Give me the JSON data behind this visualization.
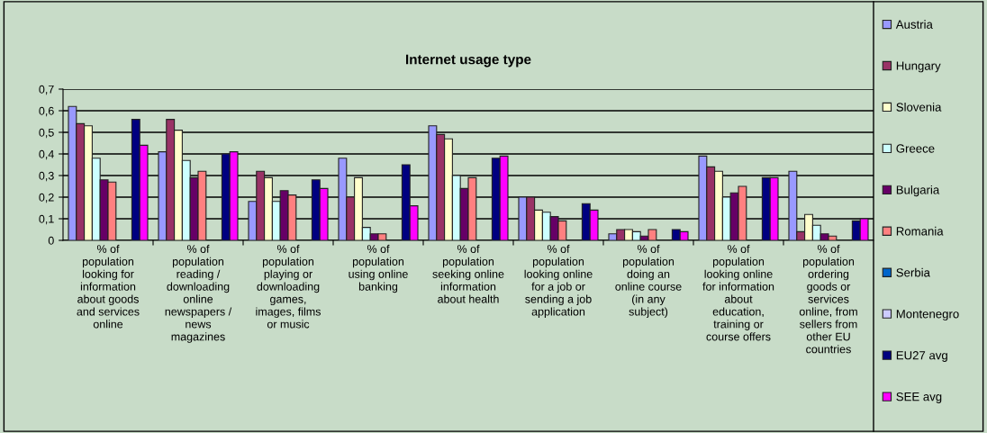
{
  "chart_data": {
    "type": "bar",
    "title": "Internet usage type",
    "categories": [
      "% of\npopulation\nlooking for\ninformation\nabout goods\nand services\nonline",
      "% of\npopulation\nreading /\ndownloading\nonline\nnewspapers /\nnews\nmagazines",
      "% of\npopulation\nplaying or\ndownloading\ngames,\nimages, films\nor music",
      "% of\npopulation\nusing online\nbanking",
      "% of\npopulation\nseeking online\ninformation\nabout health",
      "% of\npopulation\nlooking online\nfor a job or\nsending a job\napplication",
      "% of\npopulation\ndoing an\nonline course\n(in any\nsubject)",
      "% of\npopulation\nlooking online\nfor information\nabout\neducation,\ntraining or\ncourse offers",
      "% of\npopulation\nordering\ngoods or\nservices\nonline, from\nsellers from\nother EU\ncountries"
    ],
    "series": [
      {
        "name": "Austria",
        "color": "#9999ff",
        "values": [
          0.62,
          0.41,
          0.18,
          0.38,
          0.53,
          0.2,
          0.03,
          0.39,
          0.32
        ]
      },
      {
        "name": "Hungary",
        "color": "#993366",
        "values": [
          0.54,
          0.56,
          0.32,
          0.2,
          0.49,
          0.2,
          0.05,
          0.34,
          0.04
        ]
      },
      {
        "name": "Slovenia",
        "color": "#ffffcc",
        "values": [
          0.53,
          0.51,
          0.29,
          0.29,
          0.47,
          0.14,
          0.05,
          0.32,
          0.12
        ]
      },
      {
        "name": "Greece",
        "color": "#ccffff",
        "values": [
          0.38,
          0.37,
          0.18,
          0.06,
          0.3,
          0.13,
          0.04,
          0.2,
          0.07
        ]
      },
      {
        "name": "Bulgaria",
        "color": "#660066",
        "values": [
          0.28,
          0.29,
          0.23,
          0.03,
          0.24,
          0.11,
          0.02,
          0.22,
          0.03
        ]
      },
      {
        "name": "Romania",
        "color": "#ff8080",
        "values": [
          0.27,
          0.32,
          0.21,
          0.03,
          0.29,
          0.09,
          0.05,
          0.25,
          0.02
        ]
      },
      {
        "name": "Serbia",
        "color": "#0066cc",
        "values": [
          null,
          null,
          null,
          null,
          null,
          null,
          null,
          null,
          null
        ]
      },
      {
        "name": "Montenegro",
        "color": "#ccccff",
        "values": [
          null,
          null,
          null,
          null,
          null,
          null,
          null,
          null,
          null
        ]
      },
      {
        "name": "EU27 avg",
        "color": "#000080",
        "values": [
          0.56,
          0.4,
          0.28,
          0.35,
          0.38,
          0.17,
          0.05,
          0.29,
          0.09
        ]
      },
      {
        "name": "SEE avg",
        "color": "#ff00ff",
        "values": [
          0.44,
          0.41,
          0.24,
          0.16,
          0.39,
          0.14,
          0.04,
          0.29,
          0.1
        ]
      }
    ],
    "ylim": [
      0,
      0.7
    ],
    "yticks": [
      0,
      {
        "value": 0.1,
        "label": "0,1"
      },
      {
        "value": 0.2,
        "label": "0,2"
      },
      {
        "value": 0.3,
        "label": "0,3"
      },
      {
        "value": 0.4,
        "label": "0,4"
      },
      {
        "value": 0.5,
        "label": "0,5"
      },
      {
        "value": 0.6,
        "label": "0,6"
      },
      {
        "value": 0.7,
        "label": "0,7"
      }
    ],
    "grid": "y",
    "legend": "right"
  }
}
